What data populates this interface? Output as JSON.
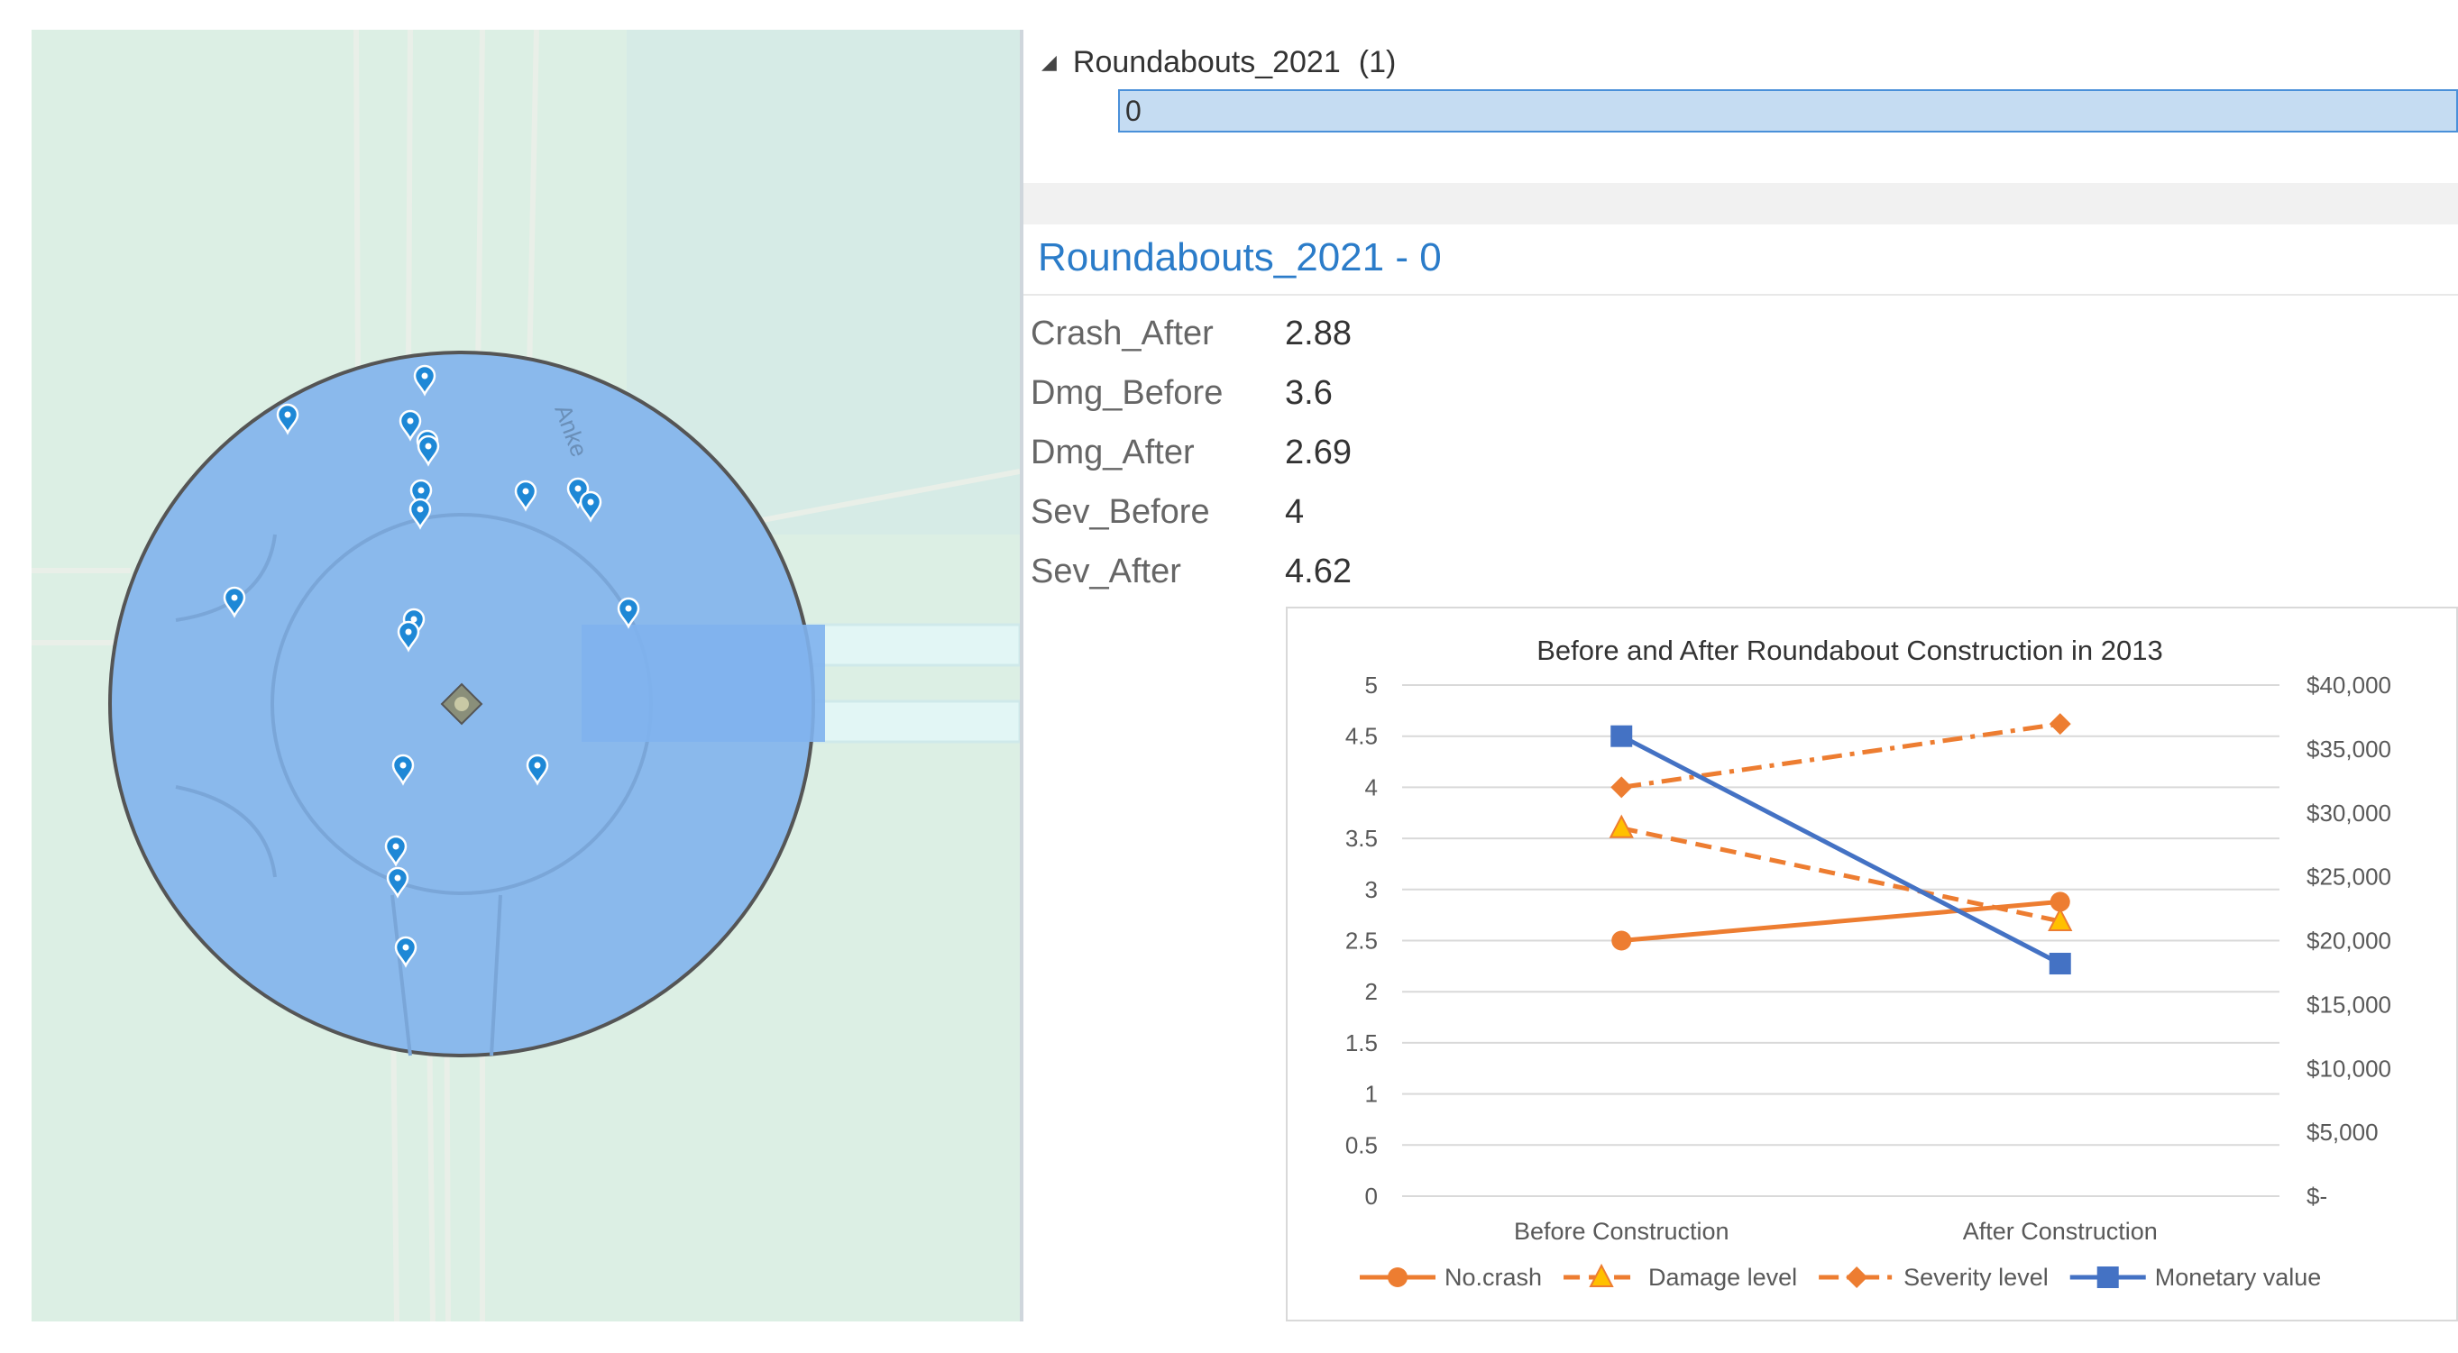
{
  "layer_tree": {
    "layer_name": "Roundabouts_2021",
    "count": "(1)",
    "selected_feature": "0"
  },
  "popup": {
    "title": "Roundabouts_2021 - 0",
    "attributes": [
      {
        "key": "Crash_After",
        "value": "2.88"
      },
      {
        "key": "Dmg_Before",
        "value": "3.6"
      },
      {
        "key": "Dmg_After",
        "value": "2.69"
      },
      {
        "key": "Sev_Before",
        "value": "4"
      },
      {
        "key": "Sev_After",
        "value": "4.62"
      }
    ]
  },
  "map": {
    "road_label": "Anke",
    "icons": [
      "crash-marker-icon",
      "roundabout-center-icon"
    ],
    "colors": {
      "background": "#dbeee3",
      "buffer": "#8ab9ec",
      "buffer_outline": "#555555",
      "marker": "#1e88d6"
    }
  },
  "chart_data": {
    "type": "line",
    "title": "Before and After Roundabout Construction in 2013",
    "categories": [
      "Before Construction",
      "After Construction"
    ],
    "ylim": [
      0,
      5
    ],
    "y_ticks": [
      "0",
      "0.5",
      "1",
      "1.5",
      "2",
      "2.5",
      "3",
      "3.5",
      "4",
      "4.5",
      "5"
    ],
    "y2lim": [
      0,
      40000
    ],
    "y2_ticks": [
      "$-",
      "$5,000",
      "$10,000",
      "$15,000",
      "$20,000",
      "$25,000",
      "$30,000",
      "$35,000",
      "$40,000"
    ],
    "grid": true,
    "legend_position": "bottom",
    "series": [
      {
        "name": "No.crash",
        "values": [
          2.5,
          2.88
        ],
        "axis": "left",
        "color": "#ed7d31",
        "style": "solid",
        "marker": "circle"
      },
      {
        "name": "Damage level",
        "values": [
          3.6,
          2.69
        ],
        "axis": "left",
        "color": "#ed7d31",
        "style": "dashed",
        "marker": "triangle"
      },
      {
        "name": "Severity level",
        "values": [
          4,
          4.62
        ],
        "axis": "left",
        "color": "#ed7d31",
        "style": "dashdot",
        "marker": "diamond"
      },
      {
        "name": "Monetary value",
        "values": [
          36000,
          18200
        ],
        "axis": "right",
        "color": "#4472c4",
        "style": "solid",
        "marker": "square"
      }
    ]
  }
}
